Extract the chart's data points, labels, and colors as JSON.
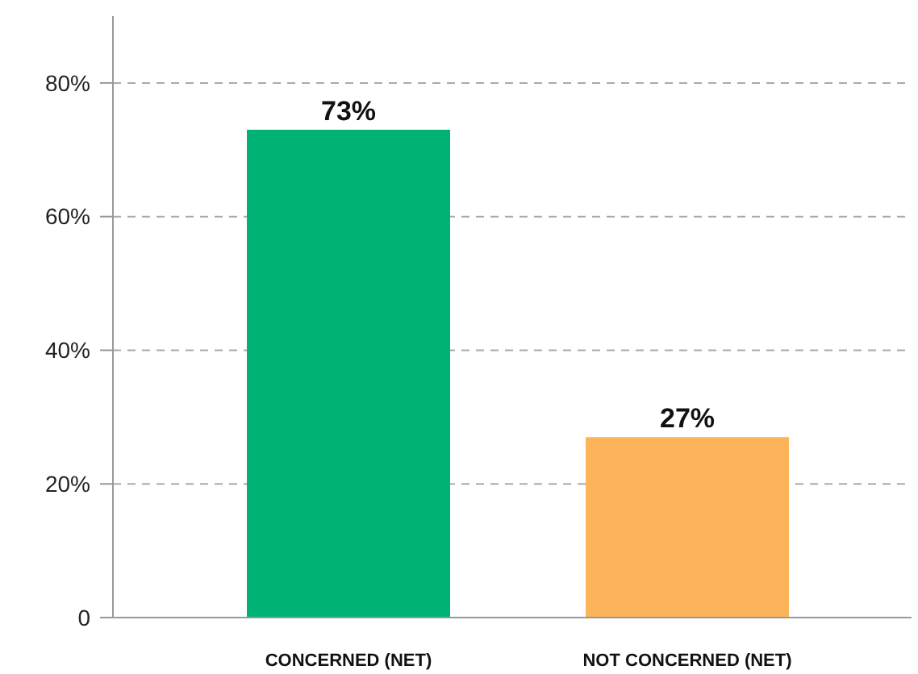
{
  "chart_data": {
    "type": "bar",
    "categories": [
      "CONCERNED (NET)",
      "NOT CONCERNED (NET)"
    ],
    "values": [
      73,
      27
    ],
    "colors": [
      "#00b274",
      "#fdb35a"
    ],
    "value_labels": [
      "73%",
      "27%"
    ],
    "ylim": [
      0,
      90
    ],
    "yticks": [
      0,
      {
        "value": 20,
        "label": "20%"
      },
      {
        "value": 40,
        "label": "40%"
      },
      {
        "value": 60,
        "label": "60%"
      },
      {
        "value": 80,
        "label": "80%"
      }
    ],
    "grid": "y"
  }
}
